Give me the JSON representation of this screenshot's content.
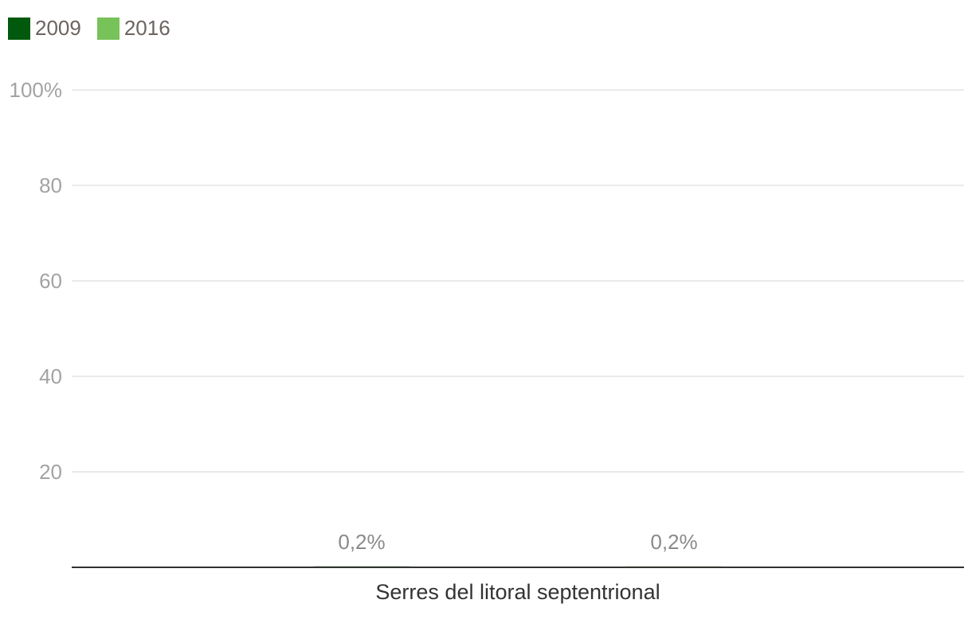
{
  "chart_data": {
    "type": "bar",
    "categories": [
      "Serres del litoral septentrional"
    ],
    "series": [
      {
        "name": "2009",
        "color": "#00590d",
        "values": [
          0.2
        ],
        "value_labels": [
          "0,2%"
        ]
      },
      {
        "name": "2016",
        "color": "#78c25a",
        "values": [
          0.2
        ],
        "value_labels": [
          "0,2%"
        ]
      }
    ],
    "ylim": [
      0,
      100
    ],
    "y_ticks": [
      {
        "value": 20,
        "label": "20"
      },
      {
        "value": 40,
        "label": "40"
      },
      {
        "value": 60,
        "label": "60"
      },
      {
        "value": 80,
        "label": "80"
      },
      {
        "value": 100,
        "label": "100%"
      }
    ],
    "grid": true,
    "legend_position": "top-left"
  }
}
